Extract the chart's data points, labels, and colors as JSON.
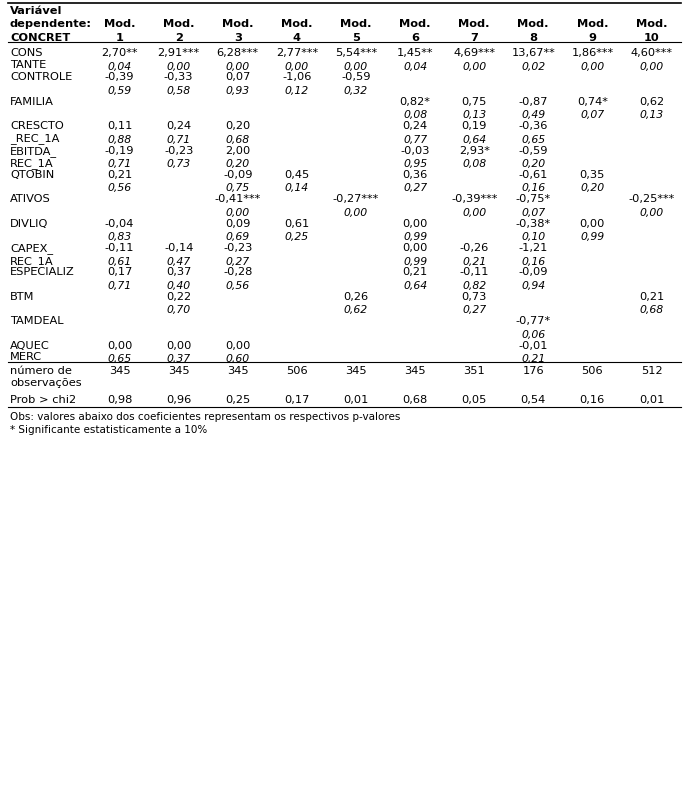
{
  "rows": [
    {
      "label": "CONS\nTANTE",
      "coef": [
        "2,70**",
        "2,91***",
        "6,28***",
        "2,77***",
        "5,54***",
        "1,45**",
        "4,69***",
        "13,67**",
        "1,86***",
        "4,60***"
      ],
      "pval": [
        "0,04",
        "0,00",
        "0,00",
        "0,00",
        "0,00",
        "0,04",
        "0,00",
        "0,02",
        "0,00",
        "0,00"
      ]
    },
    {
      "label": "CONTROLE",
      "coef": [
        "-0,39",
        "-0,33",
        "0,07",
        "-1,06",
        "-0,59",
        "",
        "",
        "",
        "",
        ""
      ],
      "pval": [
        "0,59",
        "0,58",
        "0,93",
        "0,12",
        "0,32",
        "",
        "",
        "",
        "",
        ""
      ]
    },
    {
      "label": "FAMILIA",
      "coef": [
        "",
        "",
        "",
        "",
        "",
        "0,82*",
        "0,75",
        "-0,87",
        "0,74*",
        "0,62"
      ],
      "pval": [
        "",
        "",
        "",
        "",
        "",
        "0,08",
        "0,13",
        "0,49",
        "0,07",
        "0,13"
      ]
    },
    {
      "label": "CRESCTO\n_REC_1A",
      "coef": [
        "0,11",
        "0,24",
        "0,20",
        "",
        "",
        "0,24",
        "0,19",
        "-0,36",
        "",
        ""
      ],
      "pval": [
        "0,88",
        "0,71",
        "0,68",
        "",
        "",
        "0,77",
        "0,64",
        "0,65",
        "",
        ""
      ]
    },
    {
      "label": "EBITDA_\nREC_1A",
      "coef": [
        "-0,19",
        "-0,23",
        "2,00",
        "",
        "",
        "-0,03",
        "2,93*",
        "-0,59",
        "",
        ""
      ],
      "pval": [
        "0,71",
        "0,73",
        "0,20",
        "",
        "",
        "0,95",
        "0,08",
        "0,20",
        "",
        ""
      ]
    },
    {
      "label": "QTOBIN",
      "coef": [
        "0,21",
        "",
        "-0,09",
        "0,45",
        "",
        "0,36",
        "",
        "-0,61",
        "0,35",
        ""
      ],
      "pval": [
        "0,56",
        "",
        "0,75",
        "0,14",
        "",
        "0,27",
        "",
        "0,16",
        "0,20",
        ""
      ]
    },
    {
      "label": "ATIVOS",
      "coef": [
        "",
        "",
        "-0,41***",
        "",
        "-0,27***",
        "",
        "-0,39***",
        "-0,75*",
        "",
        "-0,25***"
      ],
      "pval": [
        "",
        "",
        "0,00",
        "",
        "0,00",
        "",
        "0,00",
        "0,07",
        "",
        "0,00"
      ]
    },
    {
      "label": "DIVLIQ",
      "coef": [
        "-0,04",
        "",
        "0,09",
        "0,61",
        "",
        "0,00",
        "",
        "-0,38*",
        "0,00",
        ""
      ],
      "pval": [
        "0,83",
        "",
        "0,69",
        "0,25",
        "",
        "0,99",
        "",
        "0,10",
        "0,99",
        ""
      ]
    },
    {
      "label": "CAPEX_\nREC_1A",
      "coef": [
        "-0,11",
        "-0,14",
        "-0,23",
        "",
        "",
        "0,00",
        "-0,26",
        "-1,21",
        "",
        ""
      ],
      "pval": [
        "0,61",
        "0,47",
        "0,27",
        "",
        "",
        "0,99",
        "0,21",
        "0,16",
        "",
        ""
      ]
    },
    {
      "label": "ESPECIALIZ",
      "coef": [
        "0,17",
        "0,37",
        "-0,28",
        "",
        "",
        "0,21",
        "-0,11",
        "-0,09",
        "",
        ""
      ],
      "pval": [
        "0,71",
        "0,40",
        "0,56",
        "",
        "",
        "0,64",
        "0,82",
        "0,94",
        "",
        ""
      ]
    },
    {
      "label": "BTM",
      "coef": [
        "",
        "0,22",
        "",
        "",
        "0,26",
        "",
        "0,73",
        "",
        "",
        "0,21"
      ],
      "pval": [
        "",
        "0,70",
        "",
        "",
        "0,62",
        "",
        "0,27",
        "",
        "",
        "0,68"
      ]
    },
    {
      "label": "TAMDEAL",
      "coef": [
        "",
        "",
        "",
        "",
        "",
        "",
        "",
        "-0,77*",
        "",
        ""
      ],
      "pval": [
        "",
        "",
        "",
        "",
        "",
        "",
        "",
        "0,06",
        "",
        ""
      ]
    },
    {
      "label": "AQUEC\nMERC",
      "coef": [
        "0,00",
        "0,00",
        "0,00",
        "",
        "",
        "",
        "",
        "-0,01",
        "",
        ""
      ],
      "pval": [
        "0,65",
        "0,37",
        "0,60",
        "",
        "",
        "",
        "",
        "0,21",
        "",
        ""
      ]
    },
    {
      "label": "número de\nobservações",
      "coef": [
        "345",
        "345",
        "345",
        "506",
        "345",
        "345",
        "351",
        "176",
        "506",
        "512"
      ],
      "pval": [
        "",
        "",
        "",
        "",
        "",
        "",
        "",
        "",
        "",
        ""
      ],
      "footer": true
    },
    {
      "label": "Prob > chi2",
      "coef": [
        "0,98",
        "0,96",
        "0,25",
        "0,17",
        "0,01",
        "0,68",
        "0,05",
        "0,54",
        "0,16",
        "0,01"
      ],
      "pval": [
        "",
        "",
        "",
        "",
        "",
        "",
        "",
        "",
        "",
        ""
      ],
      "footer": true
    }
  ],
  "footnotes": [
    "Obs: valores abaixo dos coeficientes representam os respectivos p-valores",
    "* Significante estatisticamente a 10%"
  ]
}
